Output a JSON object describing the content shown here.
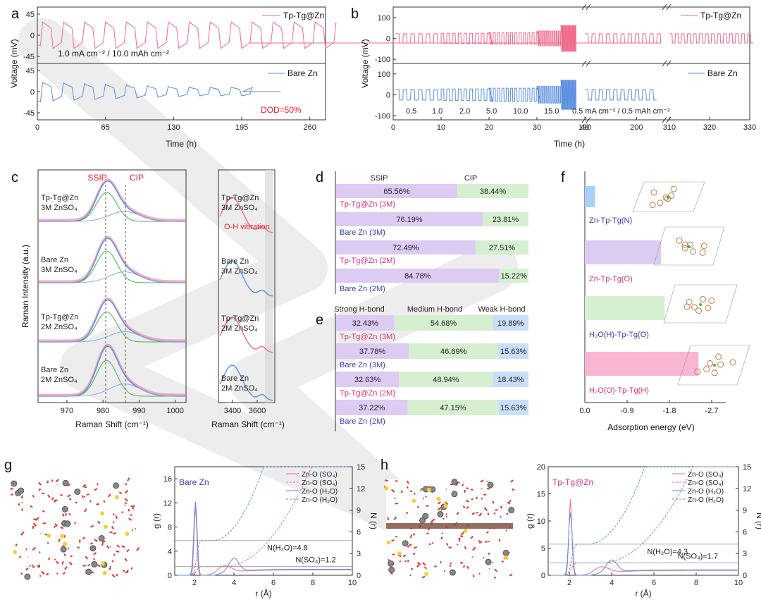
{
  "colors": {
    "pink": "#f06a8c",
    "blue": "#5b8fe0",
    "green": "#4caf50",
    "purple_fill": "#dccbf3",
    "green_fill": "#d6efd0",
    "blue_fill": "#c9defa",
    "pink_fill": "#f8b6d2",
    "red_text": "#e8202a",
    "magenta_text": "#d6337a",
    "navy_text": "#3a3fb5",
    "watermark": "#bdbdbd"
  },
  "panel_letters": [
    "a",
    "b",
    "c",
    "d",
    "e",
    "f",
    "g",
    "h"
  ],
  "chart_data": [
    {
      "id": "a",
      "type": "line",
      "xlabel": "Time (h)",
      "ylabel": "Voltage (mV)",
      "xlim": [
        0,
        275
      ],
      "xticks": [
        0,
        65,
        130,
        195,
        260
      ],
      "yticks": [
        -45,
        0,
        45
      ],
      "top": {
        "legend": "Tp-Tg@Zn",
        "annotation": "1.0 mA cm⁻² / 10.0 mAh cm⁻²",
        "ylim": [
          -60,
          60
        ],
        "end": 275
      },
      "bottom": {
        "legend": "Bare Zn",
        "annotation": "DOD=50%",
        "ylim": [
          -60,
          60
        ],
        "end": 232
      }
    },
    {
      "id": "b",
      "type": "line",
      "xlabel": "Time (h)",
      "ylabel": "Voltage (mV)",
      "xticks": [
        "0",
        "10",
        "20",
        "30",
        "40",
        "190",
        "200",
        "310",
        "320",
        "330"
      ],
      "yticks": [
        -100,
        0,
        100
      ],
      "top": {
        "legend": "Tp-Tg@Zn",
        "ylim": [
          -120,
          150
        ]
      },
      "bottom": {
        "legend": "Bare Zn",
        "ylim": [
          -120,
          150
        ]
      },
      "rate_labels": [
        "0.5",
        "1.0",
        "2.0",
        "5.0",
        "10.0",
        "15.0"
      ],
      "annotation": "0.5 mA cm⁻² / 0.5 mAh cm⁻²"
    },
    {
      "id": "c",
      "type": "line",
      "xlabel": "Raman Shift (cm⁻¹)",
      "ylabel": "Raman Intensity (a.u.)",
      "xlim": [
        962,
        1003
      ],
      "xticks": [
        970,
        980,
        990,
        1000
      ],
      "peak_labels": [
        "SSIP",
        "CIP"
      ],
      "samples": [
        {
          "name": "Tp-Tg@Zn",
          "electrolyte": "3M ZnSO₄"
        },
        {
          "name": "Bare Zn",
          "electrolyte": "3M ZnSO₄"
        },
        {
          "name": "Tp-Tg@Zn",
          "electrolyte": "2M ZnSO₄"
        },
        {
          "name": "Bare Zn",
          "electrolyte": "2M ZnSO₄"
        }
      ],
      "right": {
        "xlabel": "Raman Shift (cm⁻¹)",
        "xticks": [
          3400,
          3600
        ],
        "annotation": "O-H vibration"
      }
    },
    {
      "id": "d",
      "type": "bar",
      "headers": [
        "SSIP",
        "CIP"
      ],
      "rows": [
        {
          "label": "Tp-Tg@Zn (3M)",
          "values": [
            65.56,
            38.44
          ]
        },
        {
          "label": "Bare Zn (3M)",
          "values": [
            76.19,
            23.81
          ]
        },
        {
          "label": "Tp-Tg@Zn (2M)",
          "values": [
            72.49,
            27.51
          ]
        },
        {
          "label": "Bare Zn (2M)",
          "values": [
            84.78,
            15.22
          ]
        }
      ],
      "value_labels": [
        [
          "65.56%",
          "38.44%"
        ],
        [
          "76.19%",
          "23.81%"
        ],
        [
          "72.49%",
          "27.51%"
        ],
        [
          "84.78%",
          "15.22%"
        ]
      ]
    },
    {
      "id": "e",
      "type": "bar",
      "headers": [
        "Strong H-bond",
        "Medium H-bond",
        "Weak H-bond"
      ],
      "rows": [
        {
          "label": "Tp-Tg@Zn (3M)",
          "values": [
            32.43,
            54.68,
            19.89
          ]
        },
        {
          "label": "Bare Zn (3M)",
          "values": [
            37.78,
            46.69,
            15.63
          ]
        },
        {
          "label": "Tp-Tg@Zn (2M)",
          "values": [
            32.63,
            48.94,
            18.43
          ]
        },
        {
          "label": "Bare Zn (2M)",
          "values": [
            37.22,
            47.15,
            15.63
          ]
        }
      ],
      "value_labels": [
        [
          "32.43%",
          "54.68%",
          "19.89%"
        ],
        [
          "37.78%",
          "46.69%",
          "15.63%"
        ],
        [
          "32.63%",
          "48.94%",
          "18.43%"
        ],
        [
          "37.22%",
          "47.15%",
          "15.63%"
        ]
      ]
    },
    {
      "id": "f",
      "type": "bar",
      "xlabel": "Adsorption energy (eV)",
      "xlim": [
        0,
        -3.0
      ],
      "xticks": [
        "0.0",
        "-0.9",
        "-1.8",
        "-2.7"
      ],
      "bars": [
        {
          "label": "Zn-Tp-Tg(N)",
          "value": -0.22
        },
        {
          "label": "Zn-Tp-Tg(O)",
          "value": -1.62
        },
        {
          "label": "H₂O(H)-Tp-Tg(O)",
          "value": -1.7
        },
        {
          "label": "H₂O(O)-Tp-Tg(H)",
          "value": -2.42
        }
      ]
    },
    {
      "id": "g",
      "type": "line",
      "title": "Bare Zn",
      "xlabel": "r (Å)",
      "ylabel": "g (r)",
      "y2label": "N (r)",
      "xlim": [
        1,
        10
      ],
      "ylim": [
        0,
        18
      ],
      "y2lim": [
        0,
        15
      ],
      "xticks": [
        2,
        4,
        6,
        8,
        10
      ],
      "yticks": [
        0,
        4,
        8,
        12,
        16
      ],
      "y2ticks": [
        0,
        3,
        6,
        9,
        12,
        15
      ],
      "legend": [
        "Zn-O (SO₄)",
        "Zn-O (SO₄)",
        "Zn-O (H₂O)",
        "Zn-O (H₂O)"
      ],
      "annotations": [
        "N(H₂O)=4.8",
        "N(SO₄)=1.2"
      ],
      "peaks": {
        "h2o": {
          "r": 2.05,
          "g": 12.2
        },
        "so4": {
          "r": 2.05,
          "g": 11.3
        }
      },
      "coordination": {
        "h2o": 4.8,
        "so4": 1.2
      }
    },
    {
      "id": "h",
      "type": "line",
      "title": "Tp-Tg@Zn",
      "xlabel": "r (Å)",
      "ylabel": "g (r)",
      "y2label": "N (r)",
      "xlim": [
        1,
        10
      ],
      "ylim": [
        0,
        20
      ],
      "y2lim": [
        0,
        15
      ],
      "xticks": [
        2,
        4,
        6,
        8,
        10
      ],
      "yticks": [
        0,
        5,
        10,
        15,
        20
      ],
      "y2ticks": [
        0,
        3,
        6,
        9,
        12,
        15
      ],
      "legend": [
        "Zn-O (SO₄)",
        "Zn-O (SO₄)",
        "Zn-O (H₂O)",
        "Zn-O (H₂O)"
      ],
      "annotations": [
        "N(H₂O)=4.3",
        "N(SO₄)=1.7"
      ],
      "peaks": {
        "h2o": {
          "r": 2.05,
          "g": 11.6
        },
        "so4": {
          "r": 2.05,
          "g": 14.0
        }
      },
      "coordination": {
        "h2o": 4.3,
        "so4": 1.7
      }
    }
  ]
}
